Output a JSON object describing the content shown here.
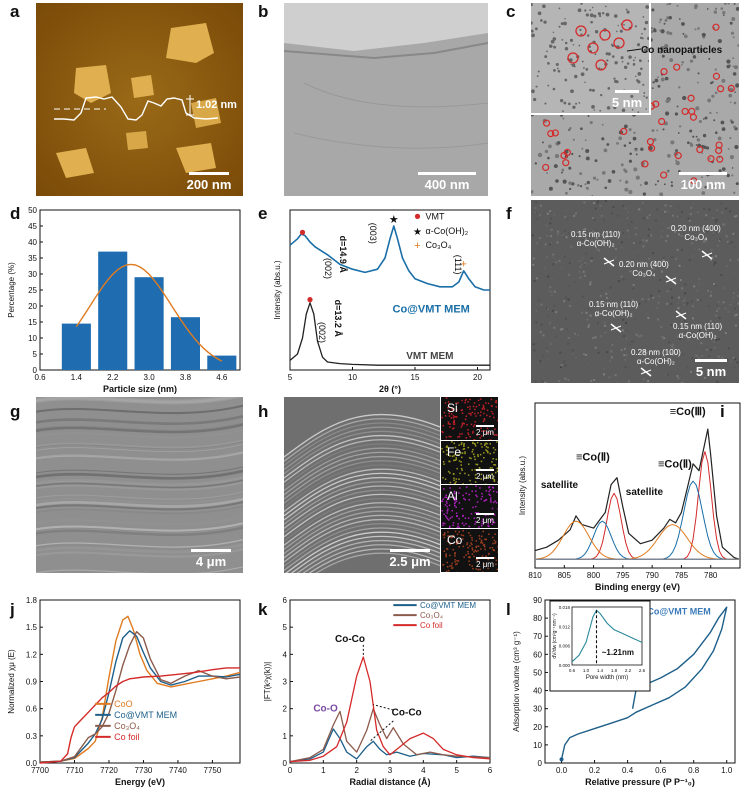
{
  "panels": {
    "a": {
      "label": "a",
      "scale": "200 nm",
      "height_label": "1.02 nm"
    },
    "b": {
      "label": "b",
      "scale": "400 nm"
    },
    "c": {
      "label": "c",
      "scale": "100 nm",
      "inset_scale": "5 nm",
      "annotation": "Co nanoparticles"
    },
    "d": {
      "label": "d"
    },
    "e": {
      "label": "e",
      "d1": "d=14.9 Å",
      "d2": "d=13.2 Å",
      "peak_002_top": "(002)",
      "peak_003": "(003)",
      "peak_111": "(111)",
      "peak_002_bottom": "(002)",
      "legend": [
        "VMT",
        "α-Co(OH)₂",
        "Co₃O₄"
      ],
      "series_names": [
        "Co@VMT MEM",
        "VMT MEM"
      ]
    },
    "f": {
      "label": "f",
      "scale": "5 nm",
      "annotations": [
        "0.15 nm (110)\nα-Co(OH)₂",
        "0.20 nm (400)\nCo₃O₄",
        "0.20 nm (400)\nCo₃O₄",
        "0.15 nm (110)\nα-Co(OH)₂",
        "0.15 nm (110)\nα-Co(OH)₂",
        "0.28 nm (100)\nα-Co(OH)₂"
      ]
    },
    "g": {
      "label": "g",
      "scale": "4 μm"
    },
    "h": {
      "label": "h",
      "scale": "2.5 μm",
      "edx": [
        {
          "element": "Si",
          "scale": "2 μm",
          "color": "#c0202a"
        },
        {
          "element": "Fe",
          "scale": "2 μm",
          "color": "#9a9a20"
        },
        {
          "element": "Al",
          "scale": "2 μm",
          "color": "#b020c0"
        },
        {
          "element": "Co",
          "scale": "2 μm",
          "color": "#a04020"
        }
      ]
    },
    "i": {
      "label": "i",
      "annotations": [
        "≡Co(Ⅲ)",
        "≡Co(Ⅱ)",
        "≡Co(Ⅱ)",
        "satellite",
        "satellite"
      ]
    },
    "j": {
      "label": "j"
    },
    "k": {
      "label": "k",
      "annotations": [
        "Co-Co",
        "Co-O",
        "Co-Co"
      ]
    },
    "l": {
      "label": "l",
      "annotation": "~1.21nm"
    }
  },
  "colors": {
    "blue": "#1a6fa8",
    "orange": "#e07b20",
    "red": "#d42a2a",
    "brown": "#8b5a4a",
    "darkblue": "#1d5f8a",
    "black": "#222222",
    "bar": "#1f6db0"
  },
  "chart_data": [
    {
      "panel": "d",
      "type": "bar",
      "title": "",
      "xlabel": "Particle size (nm)",
      "ylabel": "Percentage (%)",
      "categories": [
        "1.4",
        "2.2",
        "3.0",
        "3.8",
        "4.6"
      ],
      "values": [
        14.5,
        37,
        29,
        16.5,
        4.5
      ],
      "xlim": [
        0.6,
        5.0
      ],
      "ylim": [
        0,
        50
      ],
      "xticks": [
        "0.6",
        "1.4",
        "2.2",
        "3.0",
        "3.8",
        "4.6"
      ],
      "yticks": [
        "0",
        "5",
        "10",
        "15",
        "20",
        "25",
        "30",
        "35",
        "40",
        "45",
        "50"
      ],
      "fit_line": "gaussian"
    },
    {
      "panel": "e",
      "type": "line",
      "xlabel": "2θ (°)",
      "ylabel": "Intensity (abs.u.)",
      "xlim": [
        5,
        21
      ],
      "xticks": [
        "5",
        "10",
        "15",
        "20"
      ],
      "series": [
        {
          "name": "Co@VMT MEM",
          "x": [
            5,
            5.6,
            5.9,
            6.2,
            6.6,
            7,
            8,
            9,
            10,
            11,
            12,
            12.6,
            13,
            13.3,
            13.6,
            14,
            14.5,
            15,
            16,
            17,
            18,
            18.5,
            18.9,
            19.3,
            19.8,
            20.5,
            21
          ],
          "y": [
            0.78,
            0.82,
            0.85,
            0.84,
            0.8,
            0.77,
            0.72,
            0.66,
            0.63,
            0.61,
            0.63,
            0.7,
            0.82,
            0.9,
            0.82,
            0.7,
            0.62,
            0.57,
            0.54,
            0.52,
            0.52,
            0.55,
            0.62,
            0.57,
            0.52,
            0.5,
            0.5
          ]
        },
        {
          "name": "VMT MEM",
          "x": [
            5,
            5.6,
            6,
            6.3,
            6.6,
            6.9,
            7.2,
            7.6,
            8,
            9,
            10,
            12,
            15,
            18,
            21
          ],
          "y": [
            0.06,
            0.1,
            0.2,
            0.35,
            0.42,
            0.35,
            0.18,
            0.08,
            0.05,
            0.04,
            0.035,
            0.03,
            0.03,
            0.03,
            0.03
          ]
        }
      ]
    },
    {
      "panel": "i",
      "type": "line",
      "xlabel": "Binding energy (eV)",
      "ylabel": "Intensity (abs.u.)",
      "xlim": [
        810,
        775
      ],
      "xticks": [
        "810",
        "805",
        "800",
        "795",
        "790",
        "785",
        "780"
      ],
      "series": [
        {
          "name": "data",
          "x": [
            810,
            808,
            806,
            804,
            803,
            802,
            800,
            798,
            797,
            796,
            795,
            794,
            792,
            790,
            788,
            787,
            786,
            785,
            784,
            783,
            782,
            781,
            780.5,
            780,
            779,
            778,
            776,
            775
          ],
          "y": [
            0.2,
            0.22,
            0.26,
            0.32,
            0.4,
            0.35,
            0.33,
            0.42,
            0.58,
            0.62,
            0.45,
            0.3,
            0.24,
            0.26,
            0.33,
            0.38,
            0.36,
            0.42,
            0.56,
            0.7,
            0.66,
            0.82,
            0.9,
            0.75,
            0.4,
            0.22,
            0.16,
            0.15
          ]
        }
      ]
    },
    {
      "panel": "j",
      "type": "line",
      "xlabel": "Energy (eV)",
      "ylabel": "Normalized χμ (E)",
      "xlim": [
        7700,
        7758
      ],
      "ylim": [
        0,
        1.8
      ],
      "xticks": [
        "7700",
        "7710",
        "7720",
        "7730",
        "7740",
        "7750"
      ],
      "yticks": [
        "0.0",
        "0.3",
        "0.6",
        "0.9",
        "1.2",
        "1.5",
        "1.8"
      ],
      "series": [
        {
          "name": "CoO",
          "x": [
            7700,
            7706,
            7710,
            7714,
            7716,
            7718,
            7720,
            7722,
            7724,
            7725.5,
            7727,
            7729,
            7731,
            7734,
            7738,
            7742,
            7746,
            7750,
            7754,
            7758
          ],
          "y": [
            0.01,
            0.02,
            0.05,
            0.16,
            0.24,
            0.5,
            0.95,
            1.35,
            1.58,
            1.62,
            1.48,
            1.2,
            1.02,
            0.88,
            0.84,
            0.87,
            0.9,
            0.93,
            0.96,
            1.0
          ]
        },
        {
          "name": "Co@VMT MEM",
          "x": [
            7700,
            7706,
            7710,
            7714,
            7716,
            7718,
            7720,
            7722,
            7724,
            7726,
            7728,
            7730,
            7732,
            7735,
            7738,
            7742,
            7746,
            7750,
            7754,
            7758
          ],
          "y": [
            0.01,
            0.02,
            0.06,
            0.22,
            0.32,
            0.48,
            0.78,
            1.12,
            1.38,
            1.46,
            1.4,
            1.22,
            1.05,
            0.9,
            0.86,
            0.9,
            0.96,
            0.96,
            0.95,
            0.98
          ]
        },
        {
          "name": "Co₃O₄",
          "x": [
            7700,
            7706,
            7710,
            7714,
            7716,
            7718,
            7720,
            7722,
            7724,
            7726,
            7728,
            7730,
            7732,
            7735,
            7738,
            7742,
            7746,
            7750,
            7754,
            7758
          ],
          "y": [
            0.01,
            0.02,
            0.07,
            0.28,
            0.32,
            0.4,
            0.55,
            0.8,
            1.08,
            1.3,
            1.45,
            1.38,
            1.15,
            0.92,
            0.88,
            0.96,
            1.02,
            0.96,
            0.93,
            0.95
          ]
        },
        {
          "name": "Co foil",
          "x": [
            7700,
            7706,
            7708,
            7709,
            7710,
            7712,
            7714,
            7716,
            7718,
            7720,
            7722,
            7724,
            7726,
            7730,
            7735,
            7740,
            7745,
            7750,
            7754,
            7758
          ],
          "y": [
            0.0,
            0.02,
            0.1,
            0.28,
            0.4,
            0.48,
            0.56,
            0.64,
            0.72,
            0.78,
            0.85,
            0.9,
            0.93,
            0.95,
            0.96,
            0.98,
            1.0,
            1.03,
            1.05,
            1.05
          ]
        }
      ]
    },
    {
      "panel": "k",
      "type": "line",
      "xlabel": "Radial distance (Å)",
      "ylabel": "|FT(k³χ(k))|",
      "xlim": [
        0,
        6
      ],
      "ylim": [
        0,
        6
      ],
      "xticks": [
        "0",
        "1",
        "2",
        "3",
        "4",
        "5",
        "6"
      ],
      "yticks": [
        "0",
        "1",
        "2",
        "3",
        "4",
        "5",
        "6"
      ],
      "series": [
        {
          "name": "Co@VMT MEM",
          "x": [
            0,
            0.6,
            1.0,
            1.3,
            1.5,
            1.7,
            2.0,
            2.3,
            2.5,
            2.7,
            2.9,
            3.2,
            3.6,
            4,
            4.6,
            5,
            5.5,
            6
          ],
          "y": [
            0.05,
            0.15,
            0.4,
            1.25,
            0.9,
            0.4,
            0.15,
            0.6,
            0.8,
            0.5,
            0.3,
            0.4,
            0.25,
            0.35,
            0.3,
            0.2,
            0.25,
            0.2
          ]
        },
        {
          "name": "Co₃O₄",
          "x": [
            0,
            0.6,
            1.0,
            1.3,
            1.5,
            1.7,
            2.0,
            2.3,
            2.5,
            2.7,
            2.9,
            3.1,
            3.4,
            3.8,
            4.2,
            4.6,
            5,
            6
          ],
          "y": [
            0.05,
            0.2,
            0.5,
            1.4,
            1.9,
            0.8,
            0.4,
            1.2,
            2.0,
            1.4,
            0.9,
            1.3,
            0.7,
            0.3,
            0.4,
            0.3,
            0.25,
            0.2
          ]
        },
        {
          "name": "Co foil",
          "x": [
            0,
            0.6,
            1.0,
            1.4,
            1.7,
            2.0,
            2.2,
            2.4,
            2.6,
            2.8,
            3.0,
            3.3,
            3.6,
            4.0,
            4.3,
            4.6,
            5,
            5.5,
            6
          ],
          "y": [
            0.05,
            0.1,
            0.25,
            0.6,
            1.5,
            3.2,
            3.9,
            3.0,
            1.2,
            0.6,
            0.3,
            0.6,
            0.9,
            1.1,
            0.9,
            0.5,
            0.3,
            0.2,
            0.15
          ]
        }
      ]
    },
    {
      "panel": "l",
      "type": "line",
      "xlabel": "Relative pressure (P P⁻¹₀)",
      "ylabel": "Adsorption volume (cm³ g⁻¹)",
      "xlim": [
        -0.1,
        1.05
      ],
      "ylim": [
        0,
        90
      ],
      "xticks": [
        "0.0",
        "0.2",
        "0.4",
        "0.6",
        "0.8",
        "1.0"
      ],
      "yticks": [
        "0",
        "10",
        "20",
        "30",
        "40",
        "50",
        "60",
        "70",
        "80",
        "90"
      ],
      "series": [
        {
          "name": "Co@VMT MEM",
          "x": [
            0,
            0.02,
            0.05,
            0.1,
            0.2,
            0.3,
            0.4,
            0.45,
            0.55,
            0.65,
            0.75,
            0.85,
            0.92,
            0.97,
            1.0,
            0.95,
            0.9,
            0.8,
            0.7,
            0.6,
            0.5,
            0.45,
            0.43
          ],
          "y": [
            2,
            10,
            14,
            16,
            19,
            22,
            25,
            28,
            32,
            36,
            42,
            52,
            62,
            74,
            86,
            80,
            72,
            60,
            52,
            47,
            43,
            40,
            30
          ]
        }
      ],
      "inset": {
        "xlabel": "Pore width (nm)",
        "ylabel": "dV/dw (cm³g⁻¹nm⁻¹)",
        "xlim": [
          0.6,
          2.6
        ],
        "ylim": [
          0,
          0.018
        ],
        "xticks": [
          "0.6",
          "1.0",
          "1.4",
          "1.8",
          "2.2",
          "2.6"
        ],
        "yticks": [
          "0.000",
          "0.006",
          "0.012",
          "0.018"
        ],
        "x": [
          0.6,
          0.8,
          1.0,
          1.1,
          1.2,
          1.3,
          1.4,
          1.6,
          1.8,
          2.0,
          2.2,
          2.4,
          2.6
        ],
        "y": [
          0.001,
          0.003,
          0.007,
          0.011,
          0.015,
          0.017,
          0.016,
          0.013,
          0.011,
          0.01,
          0.009,
          0.008,
          0.007
        ]
      }
    }
  ]
}
